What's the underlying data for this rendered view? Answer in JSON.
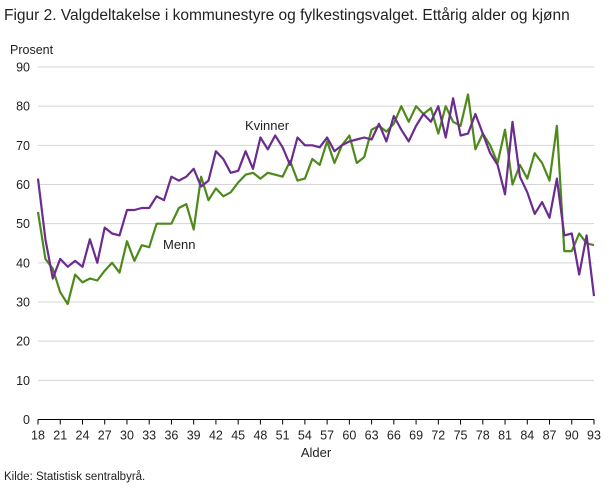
{
  "chart_data": {
    "type": "line",
    "title": "Figur 2. Valgdeltakelse i kommunestyre og fylkestingsvalget. Ettårig alder og kjønn",
    "ylabel": "Prosent",
    "xlabel": "Alder",
    "ylim": [
      0,
      90
    ],
    "yticks": [
      0,
      10,
      20,
      30,
      40,
      50,
      60,
      70,
      80,
      90
    ],
    "xlim": [
      18,
      93
    ],
    "xticks": [
      18,
      21,
      24,
      27,
      30,
      33,
      36,
      39,
      42,
      45,
      48,
      51,
      54,
      57,
      60,
      63,
      66,
      69,
      72,
      75,
      78,
      81,
      84,
      87,
      90,
      93
    ],
    "grid": "horizontal",
    "x": [
      18,
      19,
      20,
      21,
      22,
      23,
      24,
      25,
      26,
      27,
      28,
      29,
      30,
      31,
      32,
      33,
      34,
      35,
      36,
      37,
      38,
      39,
      40,
      41,
      42,
      43,
      44,
      45,
      46,
      47,
      48,
      49,
      50,
      51,
      52,
      53,
      54,
      55,
      56,
      57,
      58,
      59,
      60,
      61,
      62,
      63,
      64,
      65,
      66,
      67,
      68,
      69,
      70,
      71,
      72,
      73,
      74,
      75,
      76,
      77,
      78,
      79,
      80,
      81,
      82,
      83,
      84,
      85,
      86,
      87,
      88,
      89,
      90,
      91,
      92,
      93
    ],
    "series": [
      {
        "name": "Kvinner",
        "color": "#6b2b8f",
        "values": [
          61.5,
          46,
          36,
          41,
          39,
          40.5,
          39,
          46,
          40,
          49,
          47.5,
          47,
          53.5,
          53.5,
          54,
          54,
          57,
          56,
          62,
          61,
          62,
          64,
          59.5,
          61,
          68.5,
          66.5,
          63,
          63.5,
          68.5,
          64,
          72,
          69,
          72.5,
          69.5,
          65,
          72,
          70,
          70,
          69.5,
          72,
          68.5,
          70,
          71,
          71.5,
          72,
          71.5,
          75.5,
          71,
          77.5,
          74,
          71,
          75,
          78,
          76,
          80,
          72,
          82,
          72.5,
          73,
          78,
          73,
          68,
          65,
          57.5,
          76,
          62,
          58,
          52.5,
          55.5,
          51.5,
          61.5,
          47,
          47.5,
          37,
          47,
          31.5
        ]
      },
      {
        "name": "Menn",
        "color": "#4d8a1a",
        "values": [
          53,
          41,
          38.5,
          32.5,
          29.5,
          37,
          35,
          36,
          35.5,
          38,
          40,
          37.5,
          45.5,
          40.5,
          44.5,
          44,
          50,
          50,
          50,
          54,
          55,
          48.5,
          62,
          56,
          59,
          57,
          58,
          60.5,
          62.5,
          63,
          61.5,
          63,
          62.5,
          62,
          66,
          61,
          61.5,
          66.5,
          65,
          71,
          65.5,
          70,
          72.5,
          65.5,
          67,
          74,
          75,
          73.5,
          75.5,
          80,
          76,
          80,
          78,
          79.5,
          73,
          80,
          76,
          75,
          83,
          69,
          73,
          70,
          65.5,
          74,
          60,
          65,
          61.5,
          68,
          65.5,
          61,
          75,
          43,
          43,
          47.5,
          45,
          44.5
        ]
      }
    ]
  },
  "source": "Kilde: Statistisk sentralbyrå."
}
